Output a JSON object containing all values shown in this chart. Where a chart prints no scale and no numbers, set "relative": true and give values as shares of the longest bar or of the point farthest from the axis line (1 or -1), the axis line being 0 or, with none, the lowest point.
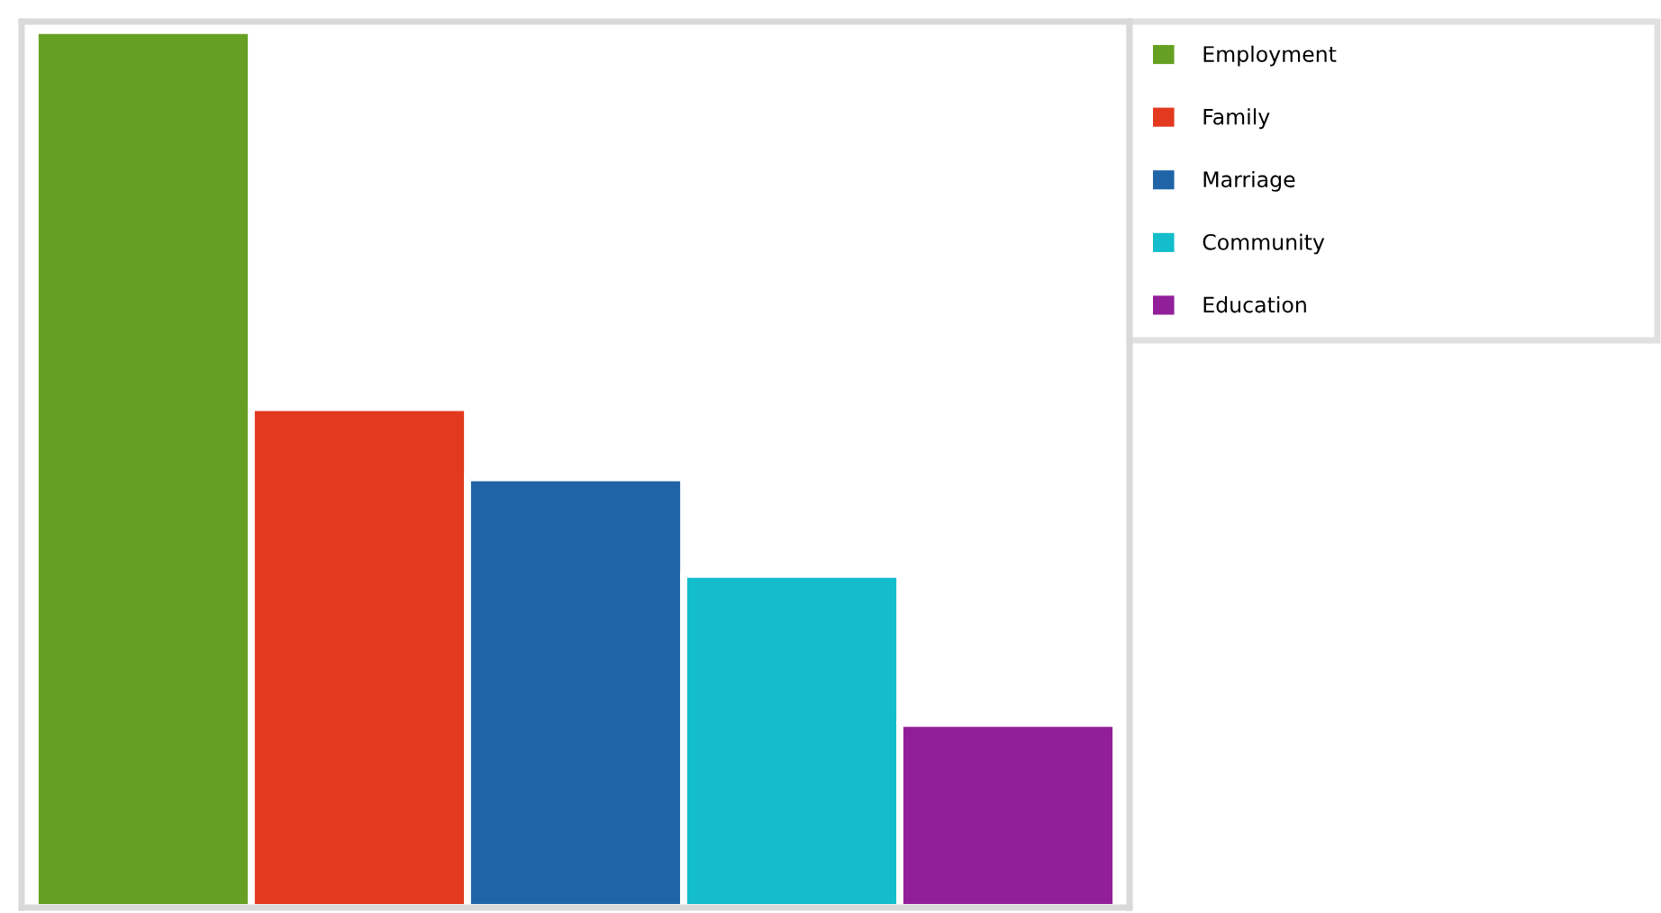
{
  "chart_data": {
    "type": "bar",
    "relative": true,
    "categories": [
      null
    ],
    "series": [
      {
        "name": "Employment",
        "color": "#66a023",
        "values": [
          1
        ]
      },
      {
        "name": "Family",
        "color": "#e2391f",
        "values": [
          0.57
        ]
      },
      {
        "name": "Marriage",
        "color": "#2064a8",
        "values": [
          0.49
        ]
      },
      {
        "name": "Community",
        "color": "#13bdcb",
        "values": [
          0.38
        ]
      },
      {
        "name": "Education",
        "color": "#921f9a",
        "values": [
          0.21
        ]
      }
    ],
    "legend": "top right"
  }
}
